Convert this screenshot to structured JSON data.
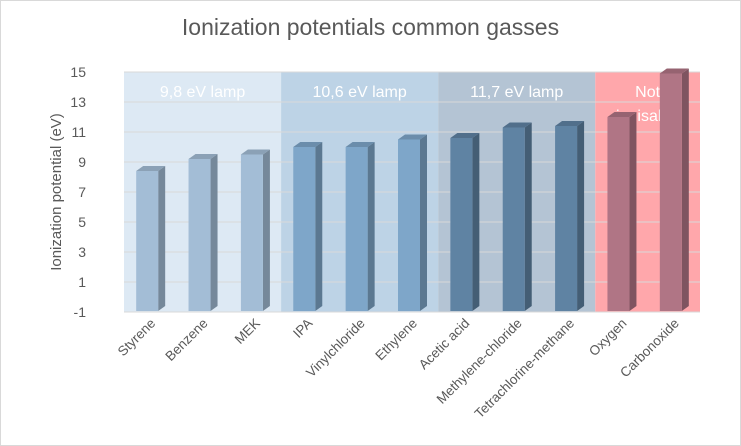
{
  "chart_data": {
    "type": "bar",
    "title": "Ionization potentials common gasses",
    "xlabel": "",
    "ylabel": "Ionization potential (eV)",
    "ylim": [
      -1,
      15
    ],
    "yticks": [
      -1,
      1,
      3,
      5,
      7,
      9,
      11,
      13,
      15
    ],
    "grid": true,
    "legend": "none",
    "bar_style": "3d-column",
    "categories": [
      "Styrene",
      "Benzene",
      "MEK",
      "IPA",
      "Vinylchloride",
      "Ethylene",
      "Acetic acid",
      "Methylene-chloride",
      "Tetrachlorine-methane",
      "Oxygen",
      "Carbonoxide"
    ],
    "values": [
      8.4,
      9.2,
      9.5,
      10.0,
      10.0,
      10.5,
      10.6,
      11.3,
      11.4,
      12.0,
      14.9
    ],
    "bar_colors": [
      "#a3bdd6",
      "#a3bdd6",
      "#a3bdd6",
      "#7ea6c9",
      "#7ea6c9",
      "#7ea6c9",
      "#5f83a3",
      "#5f83a3",
      "#5f83a3",
      "#b07585",
      "#b07585"
    ],
    "regions": [
      {
        "label": [
          "9,8 eV lamp"
        ],
        "from": 0,
        "to": 3,
        "color": "#dde9f4"
      },
      {
        "label": [
          "10,6 eV lamp"
        ],
        "from": 3,
        "to": 6,
        "color": "#bdd3e6"
      },
      {
        "label": [
          "11,7 eV lamp"
        ],
        "from": 6,
        "to": 9,
        "color": "#b4c4d4"
      },
      {
        "label": [
          "Not",
          "ionisable"
        ],
        "from": 9,
        "to": 11,
        "color": "#ffa7ab"
      }
    ],
    "colors": {
      "axis_text": "#595959",
      "gridline": "#d9d9d9",
      "region_label": "#ffffff"
    }
  }
}
